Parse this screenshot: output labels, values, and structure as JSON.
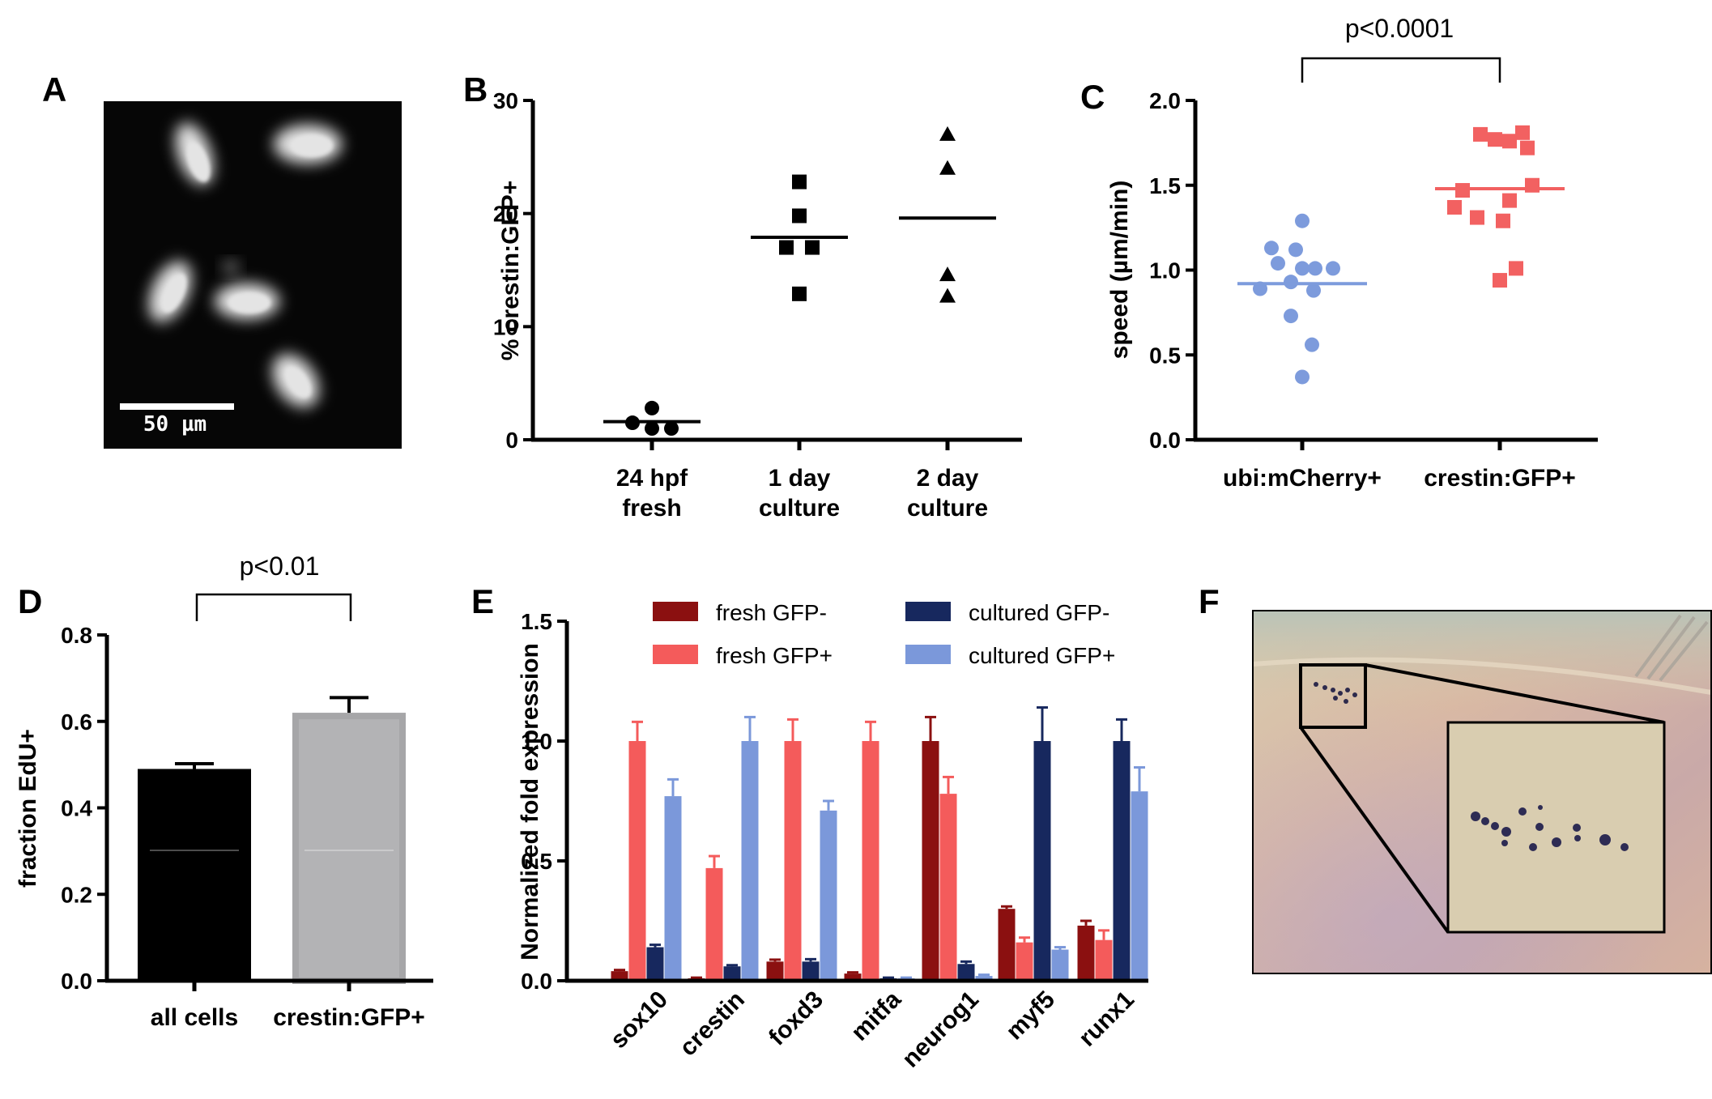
{
  "figure": {
    "panel_letters": [
      "A",
      "B",
      "C",
      "D",
      "E",
      "F"
    ]
  },
  "colors": {
    "c_blue": "#7d9bdc",
    "c_red": "#f26161",
    "d_all_cells": "#000000",
    "d_crestin": "#a6a6a8",
    "e_fresh_gfp_minus": "#8b1010",
    "e_fresh_gfp_plus": "#f45b5b",
    "e_cultured_gfp_minus": "#17285e",
    "e_cultured_gfp_plus": "#7b98da"
  },
  "panelA": {
    "scale_bar_label": "50 µm"
  },
  "panelF": {
    "marker_clusters": [
      "overview",
      "inset-zoom"
    ]
  },
  "chart_data": [
    {
      "panel": "B",
      "type": "scatter",
      "title": "",
      "xlabel": "",
      "ylabel": "% crestin:GFP+",
      "ylim": [
        0,
        30
      ],
      "yticks": [
        0,
        10,
        20,
        30
      ],
      "categories": [
        "24 hpf\nfresh",
        "1 day\nculture",
        "2 day\nculture"
      ],
      "category_lines": [
        [
          "24 hpf",
          "fresh"
        ],
        [
          "1 day",
          "culture"
        ],
        [
          "2 day",
          "culture"
        ]
      ],
      "series": [
        {
          "category": "24 hpf fresh",
          "marker": "circle",
          "points": [
            2.8,
            1.5,
            1.0,
            1.0
          ],
          "mean": 1.6
        },
        {
          "category": "1 day culture",
          "marker": "square",
          "points": [
            22.8,
            19.8,
            17.0,
            17.0,
            12.9
          ],
          "mean": 17.9
        },
        {
          "category": "2 day culture",
          "marker": "triangle",
          "points": [
            27.0,
            24.0,
            14.6,
            12.7
          ],
          "mean": 19.6
        }
      ]
    },
    {
      "panel": "C",
      "type": "scatter",
      "title": "",
      "xlabel": "",
      "ylabel": "speed (µm/min)",
      "ylim": [
        0,
        2.0
      ],
      "yticks": [
        "0.0",
        "0.5",
        "1.0",
        "1.5",
        "2.0"
      ],
      "categories": [
        "ubi:mCherry+",
        "crestin:GFP+"
      ],
      "annotation": "p<0.0001",
      "series": [
        {
          "category": "ubi:mCherry+",
          "marker": "circle",
          "color": "#7d9bdc",
          "points": [
            1.29,
            1.13,
            1.12,
            1.04,
            1.01,
            1.01,
            1.01,
            0.93,
            0.88,
            0.89,
            0.73,
            0.56,
            0.37
          ],
          "mean": 0.92
        },
        {
          "category": "crestin:GFP+",
          "marker": "square",
          "color": "#f26161",
          "points": [
            1.8,
            1.81,
            1.77,
            1.76,
            1.72,
            1.5,
            1.47,
            1.41,
            1.37,
            1.31,
            1.29,
            1.01,
            0.94
          ],
          "mean": 1.48
        }
      ]
    },
    {
      "panel": "D",
      "type": "bar",
      "title": "",
      "xlabel": "",
      "ylabel": "fraction EdU+",
      "ylim": [
        0,
        0.8
      ],
      "yticks": [
        "0.0",
        "0.2",
        "0.4",
        "0.6",
        "0.8"
      ],
      "categories": [
        "all cells",
        "crestin:GFP+"
      ],
      "values": [
        0.49,
        0.62
      ],
      "errors": [
        0.012,
        0.035
      ],
      "annotation": "p<0.01"
    },
    {
      "panel": "E",
      "type": "bar",
      "title": "",
      "xlabel": "",
      "ylabel": "Normalized fold expression",
      "ylim": [
        0,
        1.5
      ],
      "yticks": [
        "0.0",
        "0.5",
        "1.0",
        "1.5"
      ],
      "categories": [
        "sox10",
        "crestin",
        "foxd3",
        "mitfa",
        "neurog1",
        "myf5",
        "runx1"
      ],
      "legend_position": "top",
      "series": [
        {
          "name": "fresh GFP-",
          "values": [
            0.04,
            0.01,
            0.08,
            0.03,
            1.0,
            0.3,
            0.23
          ],
          "errors": [
            0.005,
            0.003,
            0.008,
            0.005,
            0.1,
            0.01,
            0.02
          ]
        },
        {
          "name": "fresh GFP+",
          "values": [
            1.0,
            0.47,
            1.0,
            1.0,
            0.78,
            0.16,
            0.17
          ],
          "errors": [
            0.08,
            0.05,
            0.09,
            0.08,
            0.07,
            0.02,
            0.04
          ]
        },
        {
          "name": "cultured GFP-",
          "values": [
            0.14,
            0.06,
            0.08,
            0.01,
            0.07,
            1.0,
            1.0
          ],
          "errors": [
            0.01,
            0.005,
            0.01,
            0.003,
            0.01,
            0.14,
            0.09
          ]
        },
        {
          "name": "cultured GFP+",
          "values": [
            0.77,
            1.0,
            0.71,
            0.01,
            0.02,
            0.13,
            0.79
          ],
          "errors": [
            0.07,
            0.1,
            0.04,
            0.003,
            0.005,
            0.01,
            0.1
          ]
        }
      ]
    }
  ]
}
